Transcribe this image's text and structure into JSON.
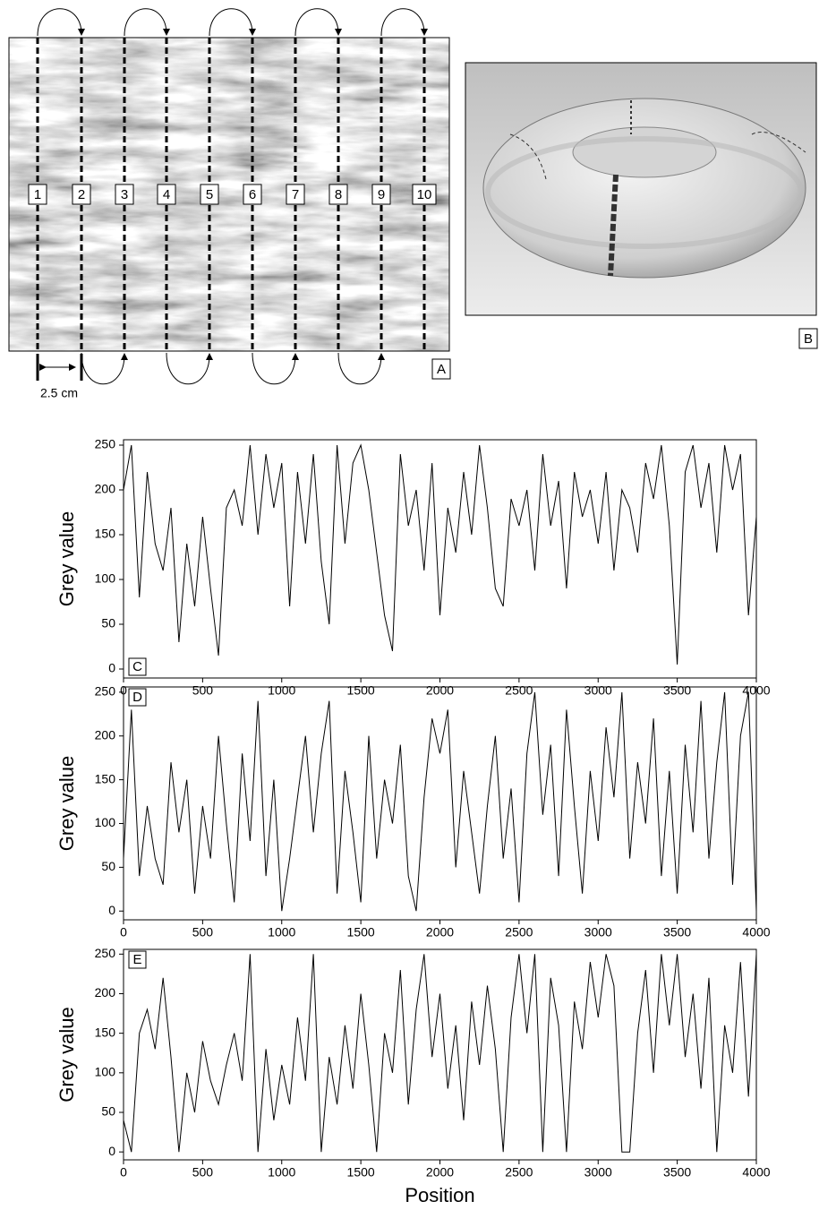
{
  "panel_a": {
    "line_labels": [
      "1",
      "2",
      "3",
      "4",
      "5",
      "6",
      "7",
      "8",
      "9",
      "10"
    ],
    "scale_label": "2.5 cm",
    "label": "A"
  },
  "panel_b": {
    "label": "B"
  },
  "chart_data": [
    {
      "type": "line",
      "panel_label": "C",
      "ylabel": "Grey value",
      "color": "#000000",
      "grid": false,
      "xlim": [
        0,
        4000
      ],
      "ylim": [
        -10,
        256
      ],
      "xticks": [
        0,
        500,
        1000,
        1500,
        2000,
        2500,
        3000,
        3500,
        4000
      ],
      "yticks": [
        0,
        50,
        100,
        150,
        200,
        250
      ],
      "x": [
        0,
        50,
        100,
        150,
        200,
        250,
        300,
        350,
        400,
        450,
        500,
        550,
        600,
        650,
        700,
        750,
        800,
        850,
        900,
        950,
        1000,
        1050,
        1100,
        1150,
        1200,
        1250,
        1300,
        1350,
        1400,
        1450,
        1500,
        1550,
        1600,
        1650,
        1700,
        1750,
        1800,
        1850,
        1900,
        1950,
        2000,
        2050,
        2100,
        2150,
        2200,
        2250,
        2300,
        2350,
        2400,
        2450,
        2500,
        2550,
        2600,
        2650,
        2700,
        2750,
        2800,
        2850,
        2900,
        2950,
        3000,
        3050,
        3100,
        3150,
        3200,
        3250,
        3300,
        3350,
        3400,
        3450,
        3500,
        3550,
        3600,
        3650,
        3700,
        3750,
        3800,
        3850,
        3900,
        3950,
        4000
      ],
      "values": [
        200,
        250,
        80,
        220,
        140,
        110,
        180,
        30,
        140,
        70,
        170,
        90,
        15,
        180,
        200,
        160,
        250,
        150,
        240,
        180,
        230,
        70,
        220,
        140,
        240,
        120,
        50,
        250,
        140,
        230,
        250,
        200,
        130,
        60,
        20,
        240,
        160,
        200,
        110,
        230,
        60,
        180,
        130,
        220,
        150,
        250,
        180,
        90,
        70,
        190,
        160,
        200,
        110,
        240,
        160,
        210,
        90,
        220,
        170,
        200,
        140,
        220,
        110,
        200,
        180,
        130,
        230,
        190,
        250,
        160,
        5,
        220,
        250,
        180,
        230,
        130,
        250,
        200,
        240,
        60,
        170
      ]
    },
    {
      "type": "line",
      "panel_label": "D",
      "ylabel": "Grey value",
      "color": "#000000",
      "grid": false,
      "xlim": [
        0,
        4000
      ],
      "ylim": [
        -10,
        256
      ],
      "xticks": [
        0,
        500,
        1000,
        1500,
        2000,
        2500,
        3000,
        3500,
        4000
      ],
      "yticks": [
        0,
        50,
        100,
        150,
        200,
        250
      ],
      "x": [
        0,
        50,
        100,
        150,
        200,
        250,
        300,
        350,
        400,
        450,
        500,
        550,
        600,
        650,
        700,
        750,
        800,
        850,
        900,
        950,
        1000,
        1050,
        1100,
        1150,
        1200,
        1250,
        1300,
        1350,
        1400,
        1450,
        1500,
        1550,
        1600,
        1650,
        1700,
        1750,
        1800,
        1850,
        1900,
        1950,
        2000,
        2050,
        2100,
        2150,
        2200,
        2250,
        2300,
        2350,
        2400,
        2450,
        2500,
        2550,
        2600,
        2650,
        2700,
        2750,
        2800,
        2850,
        2900,
        2950,
        3000,
        3050,
        3100,
        3150,
        3200,
        3250,
        3300,
        3350,
        3400,
        3450,
        3500,
        3550,
        3600,
        3650,
        3700,
        3750,
        3800,
        3850,
        3900,
        3950,
        4000
      ],
      "values": [
        60,
        230,
        40,
        120,
        60,
        30,
        170,
        90,
        150,
        20,
        120,
        60,
        200,
        100,
        10,
        180,
        80,
        240,
        40,
        150,
        0,
        60,
        130,
        200,
        90,
        180,
        240,
        20,
        160,
        90,
        10,
        200,
        60,
        150,
        100,
        190,
        40,
        0,
        130,
        220,
        180,
        230,
        50,
        160,
        90,
        20,
        120,
        200,
        60,
        140,
        10,
        180,
        250,
        110,
        190,
        40,
        230,
        120,
        20,
        160,
        80,
        210,
        130,
        250,
        60,
        170,
        100,
        220,
        40,
        160,
        20,
        190,
        90,
        240,
        60,
        170,
        250,
        30,
        200,
        250,
        0
      ]
    },
    {
      "type": "line",
      "panel_label": "E",
      "ylabel": "Grey value",
      "xlabel": "Position",
      "color": "#000000",
      "grid": false,
      "xlim": [
        0,
        4000
      ],
      "ylim": [
        -10,
        256
      ],
      "xticks": [
        0,
        500,
        1000,
        1500,
        2000,
        2500,
        3000,
        3500,
        4000
      ],
      "yticks": [
        0,
        50,
        100,
        150,
        200,
        250
      ],
      "x": [
        0,
        50,
        100,
        150,
        200,
        250,
        300,
        350,
        400,
        450,
        500,
        550,
        600,
        650,
        700,
        750,
        800,
        850,
        900,
        950,
        1000,
        1050,
        1100,
        1150,
        1200,
        1250,
        1300,
        1350,
        1400,
        1450,
        1500,
        1550,
        1600,
        1650,
        1700,
        1750,
        1800,
        1850,
        1900,
        1950,
        2000,
        2050,
        2100,
        2150,
        2200,
        2250,
        2300,
        2350,
        2400,
        2450,
        2500,
        2550,
        2600,
        2650,
        2700,
        2750,
        2800,
        2850,
        2900,
        2950,
        3000,
        3050,
        3100,
        3150,
        3200,
        3250,
        3300,
        3350,
        3400,
        3450,
        3500,
        3550,
        3600,
        3650,
        3700,
        3750,
        3800,
        3850,
        3900,
        3950,
        4000
      ],
      "values": [
        40,
        0,
        150,
        180,
        130,
        220,
        120,
        0,
        100,
        50,
        140,
        90,
        60,
        110,
        150,
        90,
        250,
        0,
        130,
        40,
        110,
        60,
        170,
        90,
        250,
        0,
        120,
        60,
        160,
        80,
        200,
        110,
        0,
        150,
        100,
        230,
        60,
        180,
        250,
        120,
        200,
        80,
        160,
        40,
        190,
        110,
        210,
        130,
        0,
        170,
        250,
        150,
        250,
        0,
        220,
        160,
        0,
        190,
        130,
        240,
        170,
        250,
        210,
        0,
        0,
        150,
        230,
        100,
        250,
        160,
        250,
        120,
        200,
        80,
        220,
        0,
        160,
        100,
        240,
        70,
        250
      ]
    }
  ]
}
